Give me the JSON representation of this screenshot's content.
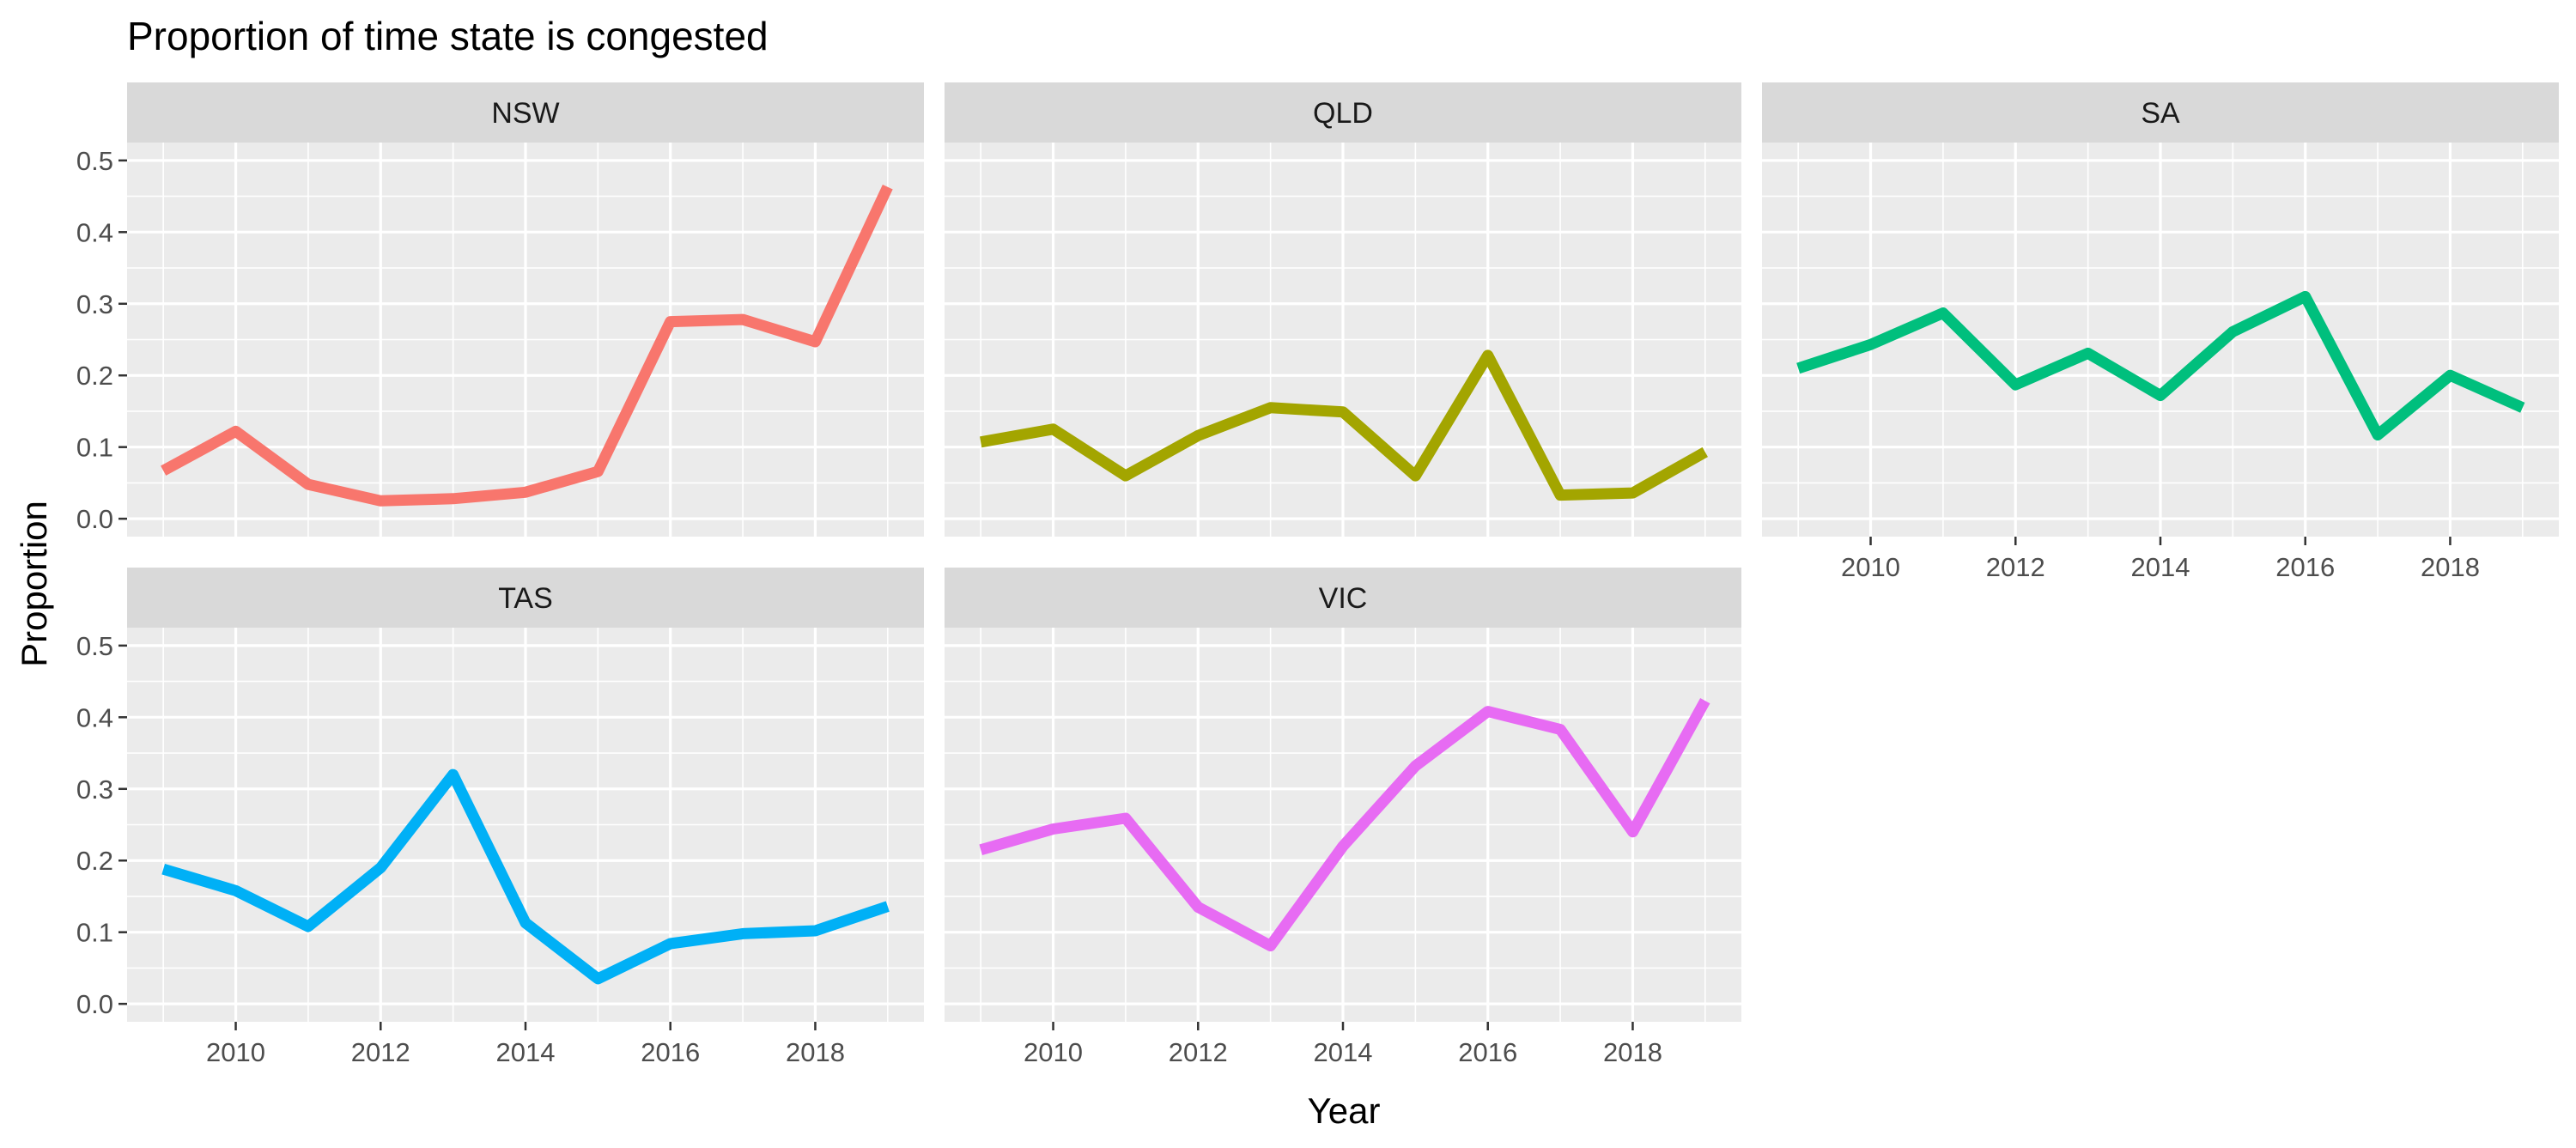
{
  "chart_data": {
    "type": "line",
    "title": "Proportion of time state is congested",
    "xlabel": "Year",
    "ylabel": "Proportion",
    "x": [
      2009,
      2010,
      2011,
      2012,
      2013,
      2014,
      2015,
      2016,
      2017,
      2018,
      2019
    ],
    "xlim": [
      2008.5,
      2019.5
    ],
    "xticks": [
      2010,
      2012,
      2014,
      2016,
      2018
    ],
    "xtick_labels": [
      "2010",
      "2012",
      "2014",
      "2016",
      "2018"
    ],
    "ylim": [
      -0.025,
      0.525
    ],
    "yticks": [
      0.0,
      0.1,
      0.2,
      0.3,
      0.4,
      0.5
    ],
    "ytick_labels": [
      "0.0",
      "0.1",
      "0.2",
      "0.3",
      "0.4",
      "0.5"
    ],
    "grid": true,
    "legend": "none",
    "facets": [
      {
        "name": "NSW",
        "color": "#F8766D",
        "values": [
          0.067,
          0.122,
          0.048,
          0.025,
          0.028,
          0.037,
          0.066,
          0.275,
          0.278,
          0.247,
          0.463
        ]
      },
      {
        "name": "QLD",
        "color": "#A3A500",
        "values": [
          0.107,
          0.125,
          0.06,
          0.116,
          0.155,
          0.149,
          0.06,
          0.228,
          0.033,
          0.036,
          0.093
        ]
      },
      {
        "name": "SA",
        "color": "#00BF7D",
        "values": [
          0.21,
          0.243,
          0.287,
          0.187,
          0.231,
          0.172,
          0.261,
          0.31,
          0.117,
          0.2,
          0.155
        ]
      },
      {
        "name": "TAS",
        "color": "#00B0F6",
        "values": [
          0.188,
          0.158,
          0.108,
          0.19,
          0.32,
          0.113,
          0.035,
          0.084,
          0.098,
          0.102,
          0.136
        ]
      },
      {
        "name": "VIC",
        "color": "#E76BF3",
        "values": [
          0.215,
          0.244,
          0.259,
          0.135,
          0.081,
          0.22,
          0.332,
          0.408,
          0.383,
          0.24,
          0.423
        ]
      }
    ]
  }
}
